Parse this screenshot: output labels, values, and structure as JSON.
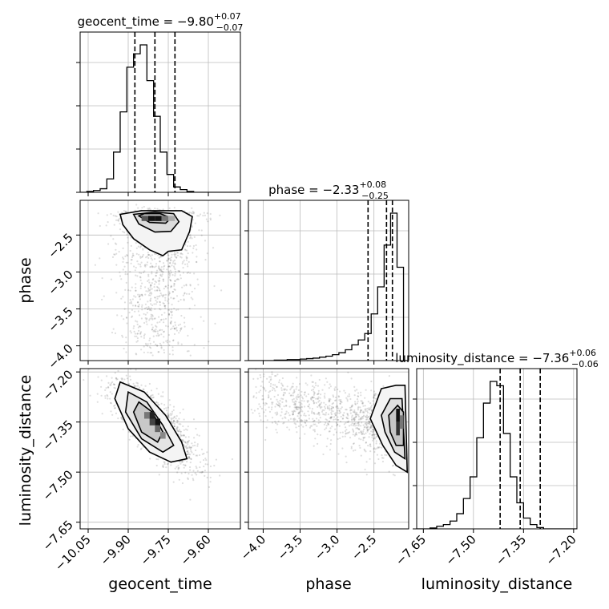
{
  "chart_data": {
    "type": "corner",
    "parameters": [
      {
        "key": "geocent_time",
        "label": "geocent_time",
        "range": [
          -10.08,
          -9.48
        ],
        "ticks": [
          "−10.05",
          "−9.90",
          "−9.75",
          "−9.60"
        ],
        "tick_values": [
          -10.05,
          -9.9,
          -9.75,
          -9.6
        ]
      },
      {
        "key": "phase",
        "label": "phase",
        "range": [
          -4.2,
          -2.03
        ],
        "ticks": [
          "−4.0",
          "−3.5",
          "−3.0",
          "−2.5"
        ],
        "tick_values": [
          -4.0,
          -3.5,
          -3.0,
          -2.5
        ]
      },
      {
        "key": "luminosity_distance",
        "label": "luminosity_distance",
        "range": [
          -7.67,
          -7.19
        ],
        "ticks": [
          "−7.65",
          "−7.50",
          "−7.35",
          "−7.20"
        ],
        "tick_values": [
          -7.65,
          -7.5,
          -7.35,
          -7.2
        ]
      }
    ],
    "titles": [
      {
        "name": "geocent_time",
        "median": "−9.80",
        "plus": "+0.07",
        "minus": "−0.07"
      },
      {
        "name": "phase",
        "median": "−2.33",
        "plus": "+0.08",
        "minus": "−0.25"
      },
      {
        "name": "luminosity_distance",
        "median": "−7.36",
        "plus": "+0.06",
        "minus": "−0.06"
      }
    ],
    "quantiles": {
      "geocent_time": [
        -9.875,
        -9.8,
        -9.725
      ],
      "phase": [
        -2.58,
        -2.33,
        -2.25
      ],
      "luminosity_distance": [
        -7.42,
        -7.36,
        -7.3
      ]
    },
    "histograms": {
      "geocent_time": {
        "edges_start": -10.08,
        "bin_width": 0.025,
        "heights": [
          0,
          2,
          4,
          8,
          30,
          90,
          180,
          280,
          310,
          330,
          250,
          170,
          90,
          40,
          12,
          6,
          2,
          0,
          0,
          0,
          0,
          0,
          0,
          0
        ]
      },
      "phase": {
        "edges_start": -4.2,
        "bin_width": 0.0875,
        "heights": [
          0,
          0,
          0,
          0,
          1,
          1,
          2,
          2,
          3,
          4,
          5,
          7,
          9,
          12,
          16,
          22,
          32,
          42,
          55,
          95,
          150,
          235,
          300,
          190,
          0
        ]
      },
      "luminosity_distance": {
        "edges_start": -7.67,
        "bin_width": 0.02,
        "heights": [
          0,
          0,
          2,
          6,
          10,
          18,
          35,
          70,
          120,
          210,
          290,
          340,
          330,
          220,
          120,
          60,
          25,
          10,
          3,
          0,
          0,
          0,
          0,
          0
        ]
      }
    },
    "grid": true
  }
}
